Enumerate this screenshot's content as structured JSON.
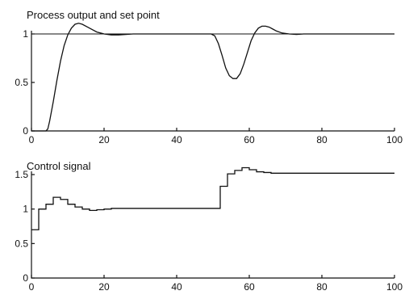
{
  "chart_data": [
    {
      "type": "line",
      "title": "Process output and set point",
      "xlabel": "",
      "ylabel": "",
      "xlim": [
        0,
        100
      ],
      "ylim": [
        0,
        1
      ],
      "x_ticks": [
        "0",
        "20",
        "40",
        "60",
        "80",
        "100"
      ],
      "y_ticks": [
        "0",
        "0.5",
        "1"
      ],
      "series": [
        {
          "role": "set_point",
          "x": [
            0,
            100
          ],
          "y": [
            1,
            1
          ]
        },
        {
          "role": "process_output",
          "x": [
            0,
            4,
            4.5,
            5,
            6,
            7,
            8,
            9,
            10,
            11,
            12,
            13,
            14,
            16,
            18,
            20,
            22,
            24,
            26,
            28,
            30,
            35,
            40,
            45,
            48,
            49.5,
            50.5,
            51.5,
            52.5,
            53.5,
            54.5,
            55.5,
            56.5,
            57.5,
            58.5,
            59.5,
            60.5,
            61.5,
            62.5,
            63.5,
            64.5,
            65.5,
            66.5,
            67.5,
            69,
            71,
            73,
            75,
            80,
            90,
            100
          ],
          "y": [
            0,
            0,
            0.02,
            0.1,
            0.3,
            0.52,
            0.72,
            0.88,
            0.99,
            1.06,
            1.1,
            1.11,
            1.1,
            1.06,
            1.02,
            1.0,
            0.99,
            0.99,
            0.995,
            1.0,
            1.0,
            1.0,
            1.0,
            1.0,
            1.0,
            1.0,
            0.98,
            0.9,
            0.78,
            0.65,
            0.57,
            0.54,
            0.54,
            0.59,
            0.69,
            0.81,
            0.93,
            1.01,
            1.06,
            1.08,
            1.08,
            1.07,
            1.05,
            1.03,
            1.01,
            1.0,
            0.995,
            1.0,
            1.0,
            1.0,
            1.0
          ]
        }
      ]
    },
    {
      "type": "line",
      "title": "Control signal",
      "xlabel": "",
      "ylabel": "",
      "xlim": [
        0,
        100
      ],
      "ylim": [
        0,
        1.5
      ],
      "x_ticks": [
        "0",
        "20",
        "40",
        "60",
        "80",
        "100"
      ],
      "y_ticks": [
        "0",
        "0.5",
        "1",
        "1.5"
      ],
      "step": true,
      "series": [
        {
          "role": "control_signal",
          "x": [
            0,
            2,
            4,
            6,
            8,
            10,
            12,
            14,
            16,
            18,
            20,
            22,
            50,
            52,
            54,
            56,
            58,
            60,
            62,
            64,
            66,
            68,
            70,
            100
          ],
          "y": [
            0.7,
            1.0,
            1.07,
            1.17,
            1.14,
            1.07,
            1.03,
            1.0,
            0.98,
            0.99,
            1.0,
            1.01,
            1.01,
            1.33,
            1.51,
            1.56,
            1.6,
            1.57,
            1.54,
            1.53,
            1.52,
            1.52,
            1.52,
            1.52
          ]
        }
      ]
    }
  ]
}
